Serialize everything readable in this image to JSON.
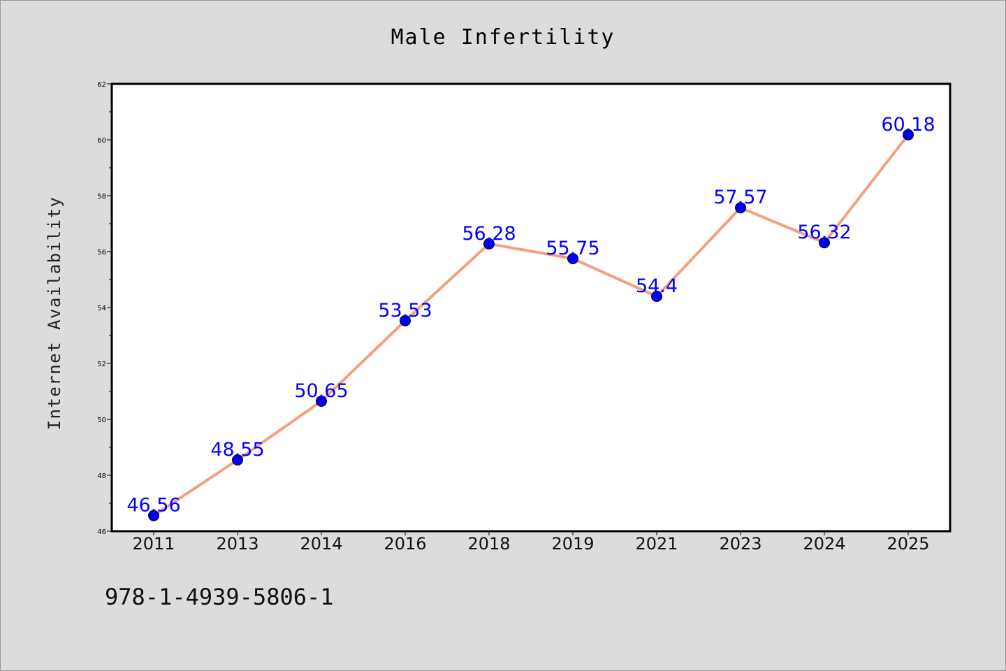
{
  "chart_data": {
    "type": "line",
    "title": "Male Infertility",
    "xlabel": "",
    "ylabel": "Internet Availability",
    "categories": [
      "2011",
      "2013",
      "2014",
      "2016",
      "2018",
      "2019",
      "2021",
      "2023",
      "2024",
      "2025"
    ],
    "series": [
      {
        "values": [
          46.56,
          48.55,
          50.65,
          53.53,
          56.28,
          55.75,
          54.4,
          57.57,
          56.32,
          60.18
        ],
        "data_labels": [
          "46.56",
          "48.55",
          "50.65",
          "53.53",
          "56.28",
          "55.75",
          "54.4",
          "57.57",
          "56.32",
          "60.18"
        ],
        "line_color": "#f4a07c",
        "marker_color": "#0000ee",
        "label_color": "#0000ff"
      }
    ],
    "ylim": [
      46,
      62
    ],
    "yticks": [
      46,
      48,
      50,
      52,
      54,
      56,
      58,
      60,
      62
    ],
    "ytick_labels": [
      "46",
      "48",
      "50",
      "52",
      "54",
      "56",
      "58",
      "60",
      "62"
    ],
    "grid": false,
    "legend": "none"
  },
  "annotation": "978-1-4939-5806-1",
  "colors": {
    "figure_background": "#dcdcdc",
    "plot_background": "#ffffff",
    "text": "#000000"
  }
}
